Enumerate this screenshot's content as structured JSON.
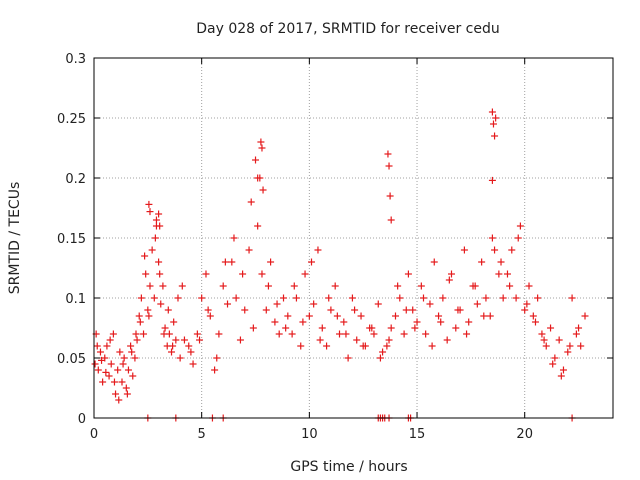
{
  "chart_data": {
    "type": "scatter",
    "title": "Day 028 of 2017, SRMTID for receiver cedu",
    "xlabel": "GPS time / hours",
    "ylabel": "SRMTID / TECUs",
    "xlim": [
      0,
      24.1
    ],
    "ylim": [
      0,
      0.3
    ],
    "xticks": [
      0,
      5,
      10,
      15,
      20
    ],
    "xtick_labels": [
      "0",
      "5",
      "10",
      "15",
      "20"
    ],
    "yticks": [
      0,
      0.05,
      0.1,
      0.15,
      0.2,
      0.25,
      0.3
    ],
    "ytick_labels": [
      "0",
      "0.05",
      "0.1",
      "0.15",
      "0.2",
      "0.25",
      "0.3"
    ],
    "grid": true,
    "marker": "+",
    "color": "#e41a1c",
    "series": [
      {
        "name": "SRMTID",
        "x": [
          0.05,
          0.1,
          0.2,
          0.3,
          0.4,
          0.5,
          0.6,
          0.7,
          0.8,
          0.9,
          1.0,
          1.1,
          1.2,
          1.3,
          1.4,
          1.5,
          1.6,
          1.7,
          1.8,
          1.9,
          0.15,
          0.35,
          0.55,
          0.75,
          0.95,
          1.15,
          1.35,
          1.55,
          1.75,
          1.95,
          2.0,
          2.1,
          2.2,
          2.3,
          2.4,
          2.5,
          2.6,
          2.7,
          2.8,
          2.9,
          3.0,
          3.1,
          3.2,
          3.3,
          3.4,
          3.5,
          3.6,
          3.7,
          3.8,
          3.9,
          2.15,
          2.35,
          2.55,
          2.85,
          3.05,
          3.25,
          3.45,
          3.65,
          4.0,
          4.2,
          4.4,
          4.6,
          4.8,
          5.0,
          5.2,
          5.4,
          5.6,
          5.8,
          6.0,
          6.2,
          6.4,
          6.6,
          6.8,
          7.0,
          7.2,
          7.4,
          7.6,
          7.8,
          8.0,
          8.2,
          8.4,
          8.6,
          8.8,
          9.0,
          4.1,
          4.5,
          4.9,
          5.3,
          5.7,
          6.1,
          6.5,
          6.9,
          7.3,
          7.7,
          8.1,
          8.5,
          8.9,
          9.2,
          9.4,
          9.6,
          9.8,
          10.0,
          10.2,
          10.4,
          10.6,
          10.8,
          11.0,
          11.2,
          11.4,
          11.6,
          11.8,
          12.0,
          12.2,
          12.4,
          12.6,
          12.8,
          13.0,
          13.2,
          13.4,
          9.3,
          9.7,
          10.1,
          10.5,
          10.9,
          11.3,
          11.7,
          12.1,
          12.5,
          12.9,
          13.3,
          13.6,
          13.8,
          14.0,
          14.2,
          14.4,
          14.6,
          14.8,
          15.0,
          15.2,
          15.4,
          15.6,
          15.8,
          16.0,
          16.2,
          16.4,
          16.6,
          16.8,
          17.0,
          17.2,
          17.4,
          17.6,
          17.8,
          18.0,
          18.2,
          18.4,
          18.6,
          18.8,
          19.0,
          13.7,
          14.1,
          14.5,
          14.9,
          15.3,
          15.7,
          16.1,
          16.5,
          16.9,
          17.3,
          17.7,
          18.1,
          18.5,
          18.9,
          19.2,
          19.4,
          19.6,
          19.8,
          20.0,
          20.2,
          20.4,
          20.6,
          20.8,
          21.0,
          21.2,
          21.4,
          21.6,
          21.8,
          22.0,
          22.2,
          22.4,
          22.6,
          22.8,
          19.3,
          19.7,
          20.1,
          20.5,
          20.9,
          21.3,
          21.7,
          22.1,
          22.5,
          2.55,
          2.6,
          2.9,
          3.0,
          3.05,
          7.5,
          7.6,
          7.75,
          7.8,
          7.85,
          13.65,
          13.7,
          13.75,
          13.8,
          18.5,
          18.55,
          18.6,
          18.65,
          18.5,
          2.5,
          3.8,
          5.5,
          6.0,
          13.2,
          13.3,
          13.4,
          13.5,
          13.7,
          14.6,
          14.7,
          22.2
        ],
        "y": [
          0.045,
          0.07,
          0.04,
          0.055,
          0.03,
          0.05,
          0.06,
          0.035,
          0.045,
          0.07,
          0.02,
          0.04,
          0.055,
          0.03,
          0.05,
          0.025,
          0.04,
          0.06,
          0.035,
          0.05,
          0.06,
          0.048,
          0.038,
          0.065,
          0.03,
          0.015,
          0.045,
          0.02,
          0.055,
          0.07,
          0.065,
          0.085,
          0.1,
          0.07,
          0.12,
          0.09,
          0.11,
          0.14,
          0.1,
          0.16,
          0.13,
          0.095,
          0.11,
          0.075,
          0.06,
          0.07,
          0.055,
          0.08,
          0.065,
          0.1,
          0.08,
          0.135,
          0.085,
          0.15,
          0.12,
          0.07,
          0.09,
          0.06,
          0.05,
          0.065,
          0.06,
          0.045,
          0.07,
          0.1,
          0.12,
          0.085,
          0.04,
          0.07,
          0.11,
          0.095,
          0.13,
          0.1,
          0.065,
          0.09,
          0.14,
          0.075,
          0.16,
          0.12,
          0.09,
          0.13,
          0.08,
          0.07,
          0.1,
          0.085,
          0.11,
          0.055,
          0.065,
          0.09,
          0.05,
          0.13,
          0.15,
          0.12,
          0.18,
          0.2,
          0.11,
          0.095,
          0.075,
          0.07,
          0.1,
          0.06,
          0.12,
          0.085,
          0.095,
          0.14,
          0.075,
          0.06,
          0.09,
          0.11,
          0.07,
          0.08,
          0.05,
          0.1,
          0.065,
          0.085,
          0.06,
          0.075,
          0.07,
          0.095,
          0.055,
          0.11,
          0.08,
          0.13,
          0.065,
          0.1,
          0.085,
          0.07,
          0.09,
          0.06,
          0.075,
          0.05,
          0.06,
          0.075,
          0.085,
          0.1,
          0.07,
          0.12,
          0.09,
          0.08,
          0.11,
          0.07,
          0.095,
          0.13,
          0.085,
          0.1,
          0.065,
          0.12,
          0.075,
          0.09,
          0.14,
          0.08,
          0.11,
          0.095,
          0.13,
          0.1,
          0.085,
          0.14,
          0.12,
          0.1,
          0.065,
          0.11,
          0.09,
          0.075,
          0.1,
          0.06,
          0.08,
          0.115,
          0.09,
          0.07,
          0.11,
          0.085,
          0.15,
          0.13,
          0.12,
          0.14,
          0.1,
          0.16,
          0.09,
          0.11,
          0.085,
          0.1,
          0.07,
          0.06,
          0.075,
          0.05,
          0.065,
          0.04,
          0.055,
          0.1,
          0.07,
          0.06,
          0.085,
          0.11,
          0.15,
          0.095,
          0.08,
          0.065,
          0.045,
          0.035,
          0.06,
          0.075,
          0.178,
          0.172,
          0.165,
          0.17,
          0.16,
          0.215,
          0.2,
          0.23,
          0.225,
          0.19,
          0.22,
          0.21,
          0.185,
          0.165,
          0.255,
          0.245,
          0.235,
          0.25,
          0.198,
          0,
          0,
          0,
          0,
          0,
          0,
          0,
          0,
          0,
          0,
          0,
          0
        ]
      }
    ]
  }
}
